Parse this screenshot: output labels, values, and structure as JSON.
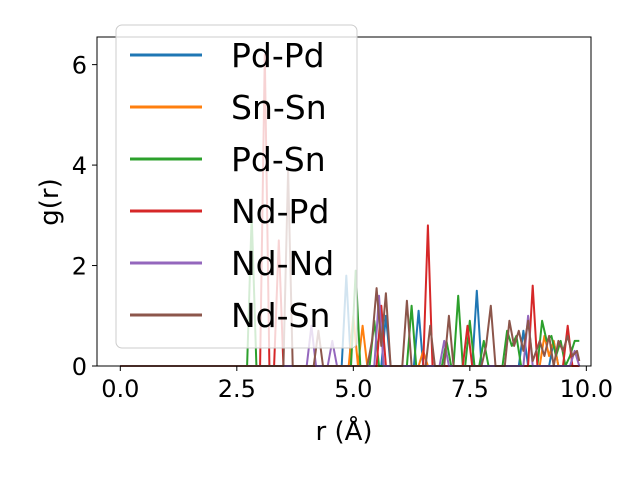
{
  "chart_data": {
    "type": "line",
    "title": "",
    "xlabel": "r (Å)",
    "ylabel": "g(r)",
    "xlim": [
      -0.5,
      10.1
    ],
    "ylim": [
      0,
      6.55
    ],
    "xticks": [
      {
        "value": 0.0,
        "label": "0.0"
      },
      {
        "value": 2.5,
        "label": "2.5"
      },
      {
        "value": 5.0,
        "label": "5.0"
      },
      {
        "value": 7.5,
        "label": "7.5"
      },
      {
        "value": 10.0,
        "label": "10.0"
      }
    ],
    "yticks": [
      {
        "value": 0,
        "label": "0"
      },
      {
        "value": 2,
        "label": "2"
      },
      {
        "value": 4,
        "label": "4"
      },
      {
        "value": 6,
        "label": "6"
      }
    ],
    "grid": false,
    "legend_position": "upper-left",
    "series": [
      {
        "name": "Pd-Pd",
        "color": "#1f77b4",
        "points": [
          [
            0,
            0
          ],
          [
            4.75,
            0
          ],
          [
            4.85,
            1.8
          ],
          [
            4.95,
            0
          ],
          [
            5.6,
            0
          ],
          [
            5.7,
            1.0
          ],
          [
            5.8,
            0
          ],
          [
            6.3,
            0
          ],
          [
            6.4,
            1.1
          ],
          [
            6.5,
            0
          ],
          [
            7.55,
            0
          ],
          [
            7.65,
            1.5
          ],
          [
            7.75,
            0
          ],
          [
            8.55,
            0
          ],
          [
            8.65,
            0.7
          ],
          [
            8.75,
            0
          ],
          [
            9.2,
            0
          ],
          [
            9.3,
            0.5
          ],
          [
            9.4,
            0
          ],
          [
            9.85,
            0
          ]
        ]
      },
      {
        "name": "Sn-Sn",
        "color": "#ff7f0e",
        "points": [
          [
            0,
            0
          ],
          [
            4.9,
            0
          ],
          [
            5.0,
            1.0
          ],
          [
            5.1,
            0
          ],
          [
            5.2,
            0.8
          ],
          [
            5.3,
            0
          ],
          [
            6.4,
            0
          ],
          [
            6.5,
            0.3
          ],
          [
            6.6,
            0
          ],
          [
            9.0,
            0
          ],
          [
            9.1,
            0.6
          ],
          [
            9.2,
            0.2
          ],
          [
            9.3,
            0.5
          ],
          [
            9.4,
            0
          ],
          [
            9.85,
            0
          ]
        ]
      },
      {
        "name": "Pd-Sn",
        "color": "#2ca02c",
        "points": [
          [
            0,
            0
          ],
          [
            2.72,
            0
          ],
          [
            2.82,
            3.0
          ],
          [
            2.92,
            0
          ],
          [
            4.95,
            0
          ],
          [
            5.05,
            1.9
          ],
          [
            5.15,
            0
          ],
          [
            5.35,
            0
          ],
          [
            5.45,
            0.9
          ],
          [
            5.55,
            0
          ],
          [
            6.15,
            0
          ],
          [
            6.25,
            1.2
          ],
          [
            6.35,
            0
          ],
          [
            6.9,
            0
          ],
          [
            7.0,
            0.5
          ],
          [
            7.1,
            0
          ],
          [
            7.15,
            0
          ],
          [
            7.25,
            1.4
          ],
          [
            7.35,
            0
          ],
          [
            7.4,
            0
          ],
          [
            7.5,
            0.9
          ],
          [
            7.6,
            0
          ],
          [
            7.7,
            0
          ],
          [
            7.8,
            0.5
          ],
          [
            7.9,
            0
          ],
          [
            8.2,
            0
          ],
          [
            8.3,
            0.7
          ],
          [
            8.4,
            0.4
          ],
          [
            8.5,
            0.6
          ],
          [
            8.6,
            0
          ],
          [
            8.95,
            0
          ],
          [
            9.05,
            0.9
          ],
          [
            9.15,
            0.5
          ],
          [
            9.25,
            0.6
          ],
          [
            9.35,
            0.2
          ],
          [
            9.45,
            0.5
          ],
          [
            9.55,
            0
          ],
          [
            9.65,
            0.2
          ],
          [
            9.75,
            0.5
          ],
          [
            9.85,
            0.5
          ]
        ]
      },
      {
        "name": "Nd-Pd",
        "color": "#d62728",
        "points": [
          [
            0,
            0
          ],
          [
            3.0,
            0
          ],
          [
            3.1,
            6.2
          ],
          [
            3.2,
            0
          ],
          [
            3.3,
            0
          ],
          [
            3.4,
            2.5
          ],
          [
            3.5,
            0
          ],
          [
            5.5,
            0
          ],
          [
            5.6,
            1.2
          ],
          [
            5.7,
            0
          ],
          [
            6.5,
            0
          ],
          [
            6.6,
            2.8
          ],
          [
            6.7,
            0
          ],
          [
            7.35,
            0
          ],
          [
            7.45,
            0.8
          ],
          [
            7.55,
            0
          ],
          [
            8.75,
            0
          ],
          [
            8.85,
            1.6
          ],
          [
            8.95,
            0
          ],
          [
            9.5,
            0
          ],
          [
            9.6,
            0.8
          ],
          [
            9.7,
            0
          ],
          [
            9.85,
            0
          ]
        ]
      },
      {
        "name": "Nd-Nd",
        "color": "#9467bd",
        "points": [
          [
            0,
            0
          ],
          [
            4.0,
            0
          ],
          [
            4.1,
            0.8
          ],
          [
            4.2,
            0
          ],
          [
            4.45,
            0
          ],
          [
            4.55,
            0.5
          ],
          [
            4.65,
            0
          ],
          [
            5.45,
            0
          ],
          [
            5.55,
            1.4
          ],
          [
            5.65,
            0
          ],
          [
            6.85,
            0
          ],
          [
            6.95,
            0.5
          ],
          [
            7.05,
            0
          ],
          [
            8.65,
            0
          ],
          [
            8.75,
            1.0
          ],
          [
            8.85,
            0
          ],
          [
            9.65,
            0
          ],
          [
            9.75,
            0.3
          ],
          [
            9.85,
            0
          ]
        ]
      },
      {
        "name": "Nd-Sn",
        "color": "#8c564b",
        "points": [
          [
            0,
            0
          ],
          [
            3.5,
            0
          ],
          [
            3.6,
            3.9
          ],
          [
            3.7,
            0
          ],
          [
            4.15,
            0
          ],
          [
            4.25,
            0.7
          ],
          [
            4.35,
            0
          ],
          [
            5.3,
            0
          ],
          [
            5.4,
            0.5
          ],
          [
            5.5,
            1.55
          ],
          [
            5.6,
            0.4
          ],
          [
            5.7,
            1.45
          ],
          [
            5.8,
            0
          ],
          [
            6.05,
            0
          ],
          [
            6.15,
            1.3
          ],
          [
            6.25,
            0
          ],
          [
            6.55,
            0
          ],
          [
            6.65,
            0.8
          ],
          [
            6.75,
            0
          ],
          [
            6.95,
            0
          ],
          [
            7.05,
            1.0
          ],
          [
            7.15,
            0
          ],
          [
            7.75,
            0
          ],
          [
            7.85,
            0.4
          ],
          [
            7.95,
            1.2
          ],
          [
            8.05,
            0
          ],
          [
            8.25,
            0
          ],
          [
            8.35,
            0.9
          ],
          [
            8.45,
            0.4
          ],
          [
            8.55,
            0.7
          ],
          [
            8.65,
            0.3
          ],
          [
            8.75,
            0.9
          ],
          [
            8.85,
            0.1
          ],
          [
            9.0,
            0.5
          ],
          [
            9.1,
            0.2
          ],
          [
            9.2,
            0.6
          ],
          [
            9.3,
            0
          ],
          [
            9.4,
            0.5
          ],
          [
            9.5,
            0.3
          ],
          [
            9.6,
            0.6
          ],
          [
            9.7,
            0.2
          ],
          [
            9.8,
            0.3
          ],
          [
            9.85,
            0.1
          ]
        ]
      }
    ]
  }
}
